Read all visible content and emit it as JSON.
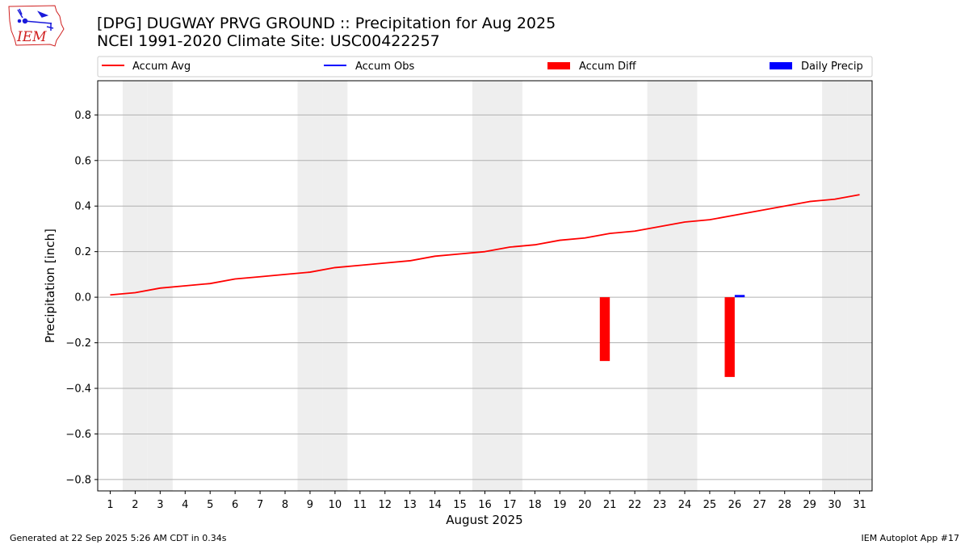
{
  "chart_data": {
    "type": "bar",
    "title": "[DPG] DUGWAY PRVG GROUND :: Precipitation for Aug 2025",
    "subtitle": "NCEI 1991-2020 Climate Site: USC00422257",
    "xlabel": "August 2025",
    "ylabel": "Precipitation [inch]",
    "ylim": [
      -0.85,
      0.95
    ],
    "yticks": [
      -0.8,
      -0.6,
      -0.4,
      -0.2,
      0.0,
      0.2,
      0.4,
      0.6,
      0.8
    ],
    "ytick_labels": [
      "−0.8",
      "−0.6",
      "−0.4",
      "−0.2",
      "0.0",
      "0.2",
      "0.4",
      "0.6",
      "0.8"
    ],
    "x": [
      1,
      2,
      3,
      4,
      5,
      6,
      7,
      8,
      9,
      10,
      11,
      12,
      13,
      14,
      15,
      16,
      17,
      18,
      19,
      20,
      21,
      22,
      23,
      24,
      25,
      26,
      27,
      28,
      29,
      30,
      31
    ],
    "x_labels": [
      "1",
      "2",
      "3",
      "4",
      "5",
      "6",
      "7",
      "8",
      "9",
      "10",
      "11",
      "12",
      "13",
      "14",
      "15",
      "16",
      "17",
      "18",
      "19",
      "20",
      "21",
      "22",
      "23",
      "24",
      "25",
      "26",
      "27",
      "28",
      "29",
      "30",
      "31"
    ],
    "grid": "horizontal",
    "legend_position": "top",
    "legend": [
      "Accum Avg",
      "Accum Obs",
      "Accum Diff",
      "Daily Precip"
    ],
    "weekend_days": [
      2,
      3,
      9,
      10,
      16,
      17,
      23,
      24,
      30,
      31
    ],
    "series": [
      {
        "name": "Accum Avg",
        "kind": "line",
        "color": "#ff0000",
        "x": [
          1,
          2,
          3,
          4,
          5,
          6,
          7,
          8,
          9,
          10,
          11,
          12,
          13,
          14,
          15,
          16,
          17,
          18,
          19,
          20,
          21,
          22,
          23,
          24,
          25,
          26,
          27,
          28,
          29,
          30,
          31
        ],
        "values": [
          0.01,
          0.02,
          0.04,
          0.05,
          0.06,
          0.08,
          0.09,
          0.1,
          0.11,
          0.13,
          0.14,
          0.15,
          0.16,
          0.18,
          0.19,
          0.2,
          0.22,
          0.23,
          0.25,
          0.26,
          0.28,
          0.29,
          0.31,
          0.33,
          0.34,
          0.36,
          0.38,
          0.4,
          0.42,
          0.43,
          0.45
        ]
      },
      {
        "name": "Accum Obs",
        "kind": "line",
        "color": "#0000ff",
        "x": [],
        "values": []
      },
      {
        "name": "Accum Diff",
        "kind": "bar",
        "color": "#ff0000",
        "x": [
          21,
          26
        ],
        "values": [
          -0.28,
          -0.35
        ]
      },
      {
        "name": "Daily Precip",
        "kind": "bar",
        "color": "#0000ff",
        "x": [
          26
        ],
        "values": [
          0.01
        ]
      }
    ]
  },
  "footer": {
    "left": "Generated at 22 Sep 2025 5:26 AM CDT in 0.34s",
    "right": "IEM Autoplot App #17"
  },
  "logo": {
    "text": "IEM",
    "color": "#d02020",
    "accent": "#1a1adb"
  }
}
